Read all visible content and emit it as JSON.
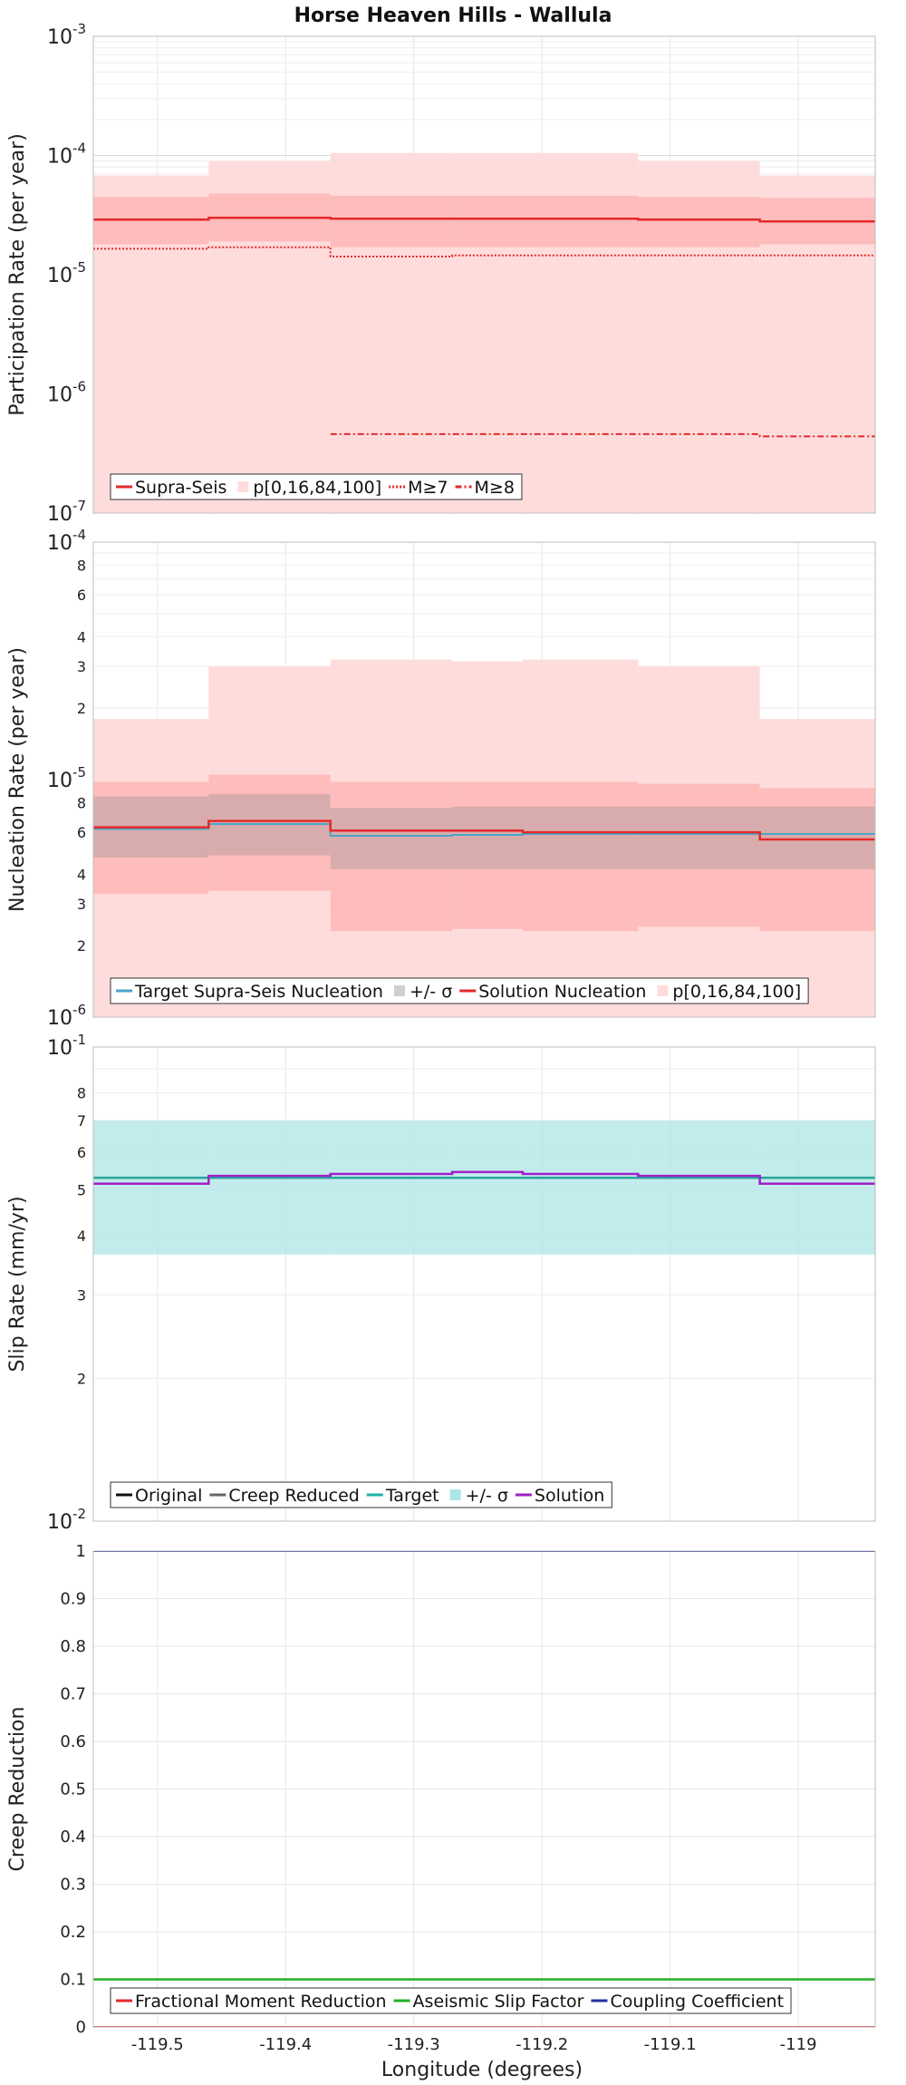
{
  "title": "Horse Heaven Hills - Wallula",
  "xlabel": "Longitude (degrees)",
  "x_ticks": [
    "-119.5",
    "-119.4",
    "-119.3",
    "-119.2",
    "-119.1",
    "-119"
  ],
  "x_range": [
    -119.55,
    -118.94
  ],
  "x_tick_values": [
    -119.5,
    -119.4,
    -119.3,
    -119.2,
    -119.1,
    -119.0
  ],
  "chart_data": [
    {
      "type": "line",
      "step": true,
      "ylabel": "Participation Rate (per year)",
      "yscale": "log",
      "ylim": [
        1e-07,
        0.001
      ],
      "grid": true,
      "legend_position": "bottom-left",
      "y_ticks": [
        {
          "value": 1e-07,
          "base": "10",
          "exp": "-7"
        },
        {
          "value": 1e-06,
          "base": "10",
          "exp": "-6"
        },
        {
          "value": 1e-05,
          "base": "10",
          "exp": "-5"
        },
        {
          "value": 0.0001,
          "base": "10",
          "exp": "-4"
        },
        {
          "value": 0.001,
          "base": "10",
          "exp": "-3"
        }
      ],
      "x_edges": [
        -119.55,
        -119.46,
        -119.365,
        -119.27,
        -119.215,
        -119.125,
        -119.03,
        -118.94
      ],
      "bands": [
        {
          "name": "p[0,16,84,100]",
          "color": "#ffdcdc",
          "opacity": 1,
          "low": [
            1e-07,
            1e-07,
            1e-07,
            1e-07,
            1e-07,
            1e-07,
            1e-07
          ],
          "high": [
            6.8e-05,
            9e-05,
            0.000105,
            0.000105,
            0.000105,
            9e-05,
            6.8e-05
          ]
        },
        {
          "name": "p16-84",
          "color": "#ffbcbc",
          "opacity": 1,
          "low": [
            1.8e-05,
            1.9e-05,
            1.7e-05,
            1.7e-05,
            1.7e-05,
            1.7e-05,
            1.8e-05
          ],
          "high": [
            4.5e-05,
            4.8e-05,
            4.6e-05,
            4.6e-05,
            4.6e-05,
            4.5e-05,
            4.4e-05
          ]
        }
      ],
      "series": [
        {
          "name": "Supra-Seis",
          "color": "#e32a2a",
          "dash": "",
          "width": 2.5,
          "values": [
            2.9e-05,
            3e-05,
            2.95e-05,
            2.95e-05,
            2.95e-05,
            2.9e-05,
            2.8e-05
          ]
        },
        {
          "name": "M≥7",
          "color": "#e32a2a",
          "dash": "2,2",
          "width": 2,
          "values": [
            1.65e-05,
            1.7e-05,
            1.42e-05,
            1.45e-05,
            1.45e-05,
            1.45e-05,
            1.45e-05
          ]
        },
        {
          "name": "M≥8",
          "color": "#e32a2a",
          "dash": "7,3,2,3",
          "width": 2,
          "values": [
            null,
            null,
            4.6e-07,
            4.6e-07,
            4.6e-07,
            4.6e-07,
            4.4e-07
          ]
        }
      ],
      "legend": [
        {
          "label": "Supra-Seis",
          "kind": "line",
          "color": "#e32a2a",
          "dash": ""
        },
        {
          "label": "p[0,16,84,100]",
          "kind": "box",
          "color": "#ffdcdc"
        },
        {
          "label": "M≥7",
          "kind": "line",
          "color": "#e32a2a",
          "dash": "2,2"
        },
        {
          "label": "M≥8",
          "kind": "line",
          "color": "#e32a2a",
          "dash": "7,3,2,3"
        }
      ]
    },
    {
      "type": "line",
      "step": true,
      "ylabel": "Nucleation Rate (per year)",
      "yscale": "log",
      "ylim": [
        1e-06,
        0.0001
      ],
      "grid": true,
      "legend_position": "bottom-left",
      "y_ticks": [
        {
          "value": 1e-06,
          "base": "10",
          "exp": "-6"
        },
        {
          "value": 2e-06,
          "label": "2"
        },
        {
          "value": 3e-06,
          "label": "3"
        },
        {
          "value": 4e-06,
          "label": "4"
        },
        {
          "value": 6e-06,
          "label": "6"
        },
        {
          "value": 8e-06,
          "label": "8"
        },
        {
          "value": 1e-05,
          "base": "10",
          "exp": "-5"
        },
        {
          "value": 2e-05,
          "label": "2"
        },
        {
          "value": 3e-05,
          "label": "3"
        },
        {
          "value": 4e-05,
          "label": "4"
        },
        {
          "value": 6e-05,
          "label": "6"
        },
        {
          "value": 8e-05,
          "label": "8"
        },
        {
          "value": 0.0001,
          "base": "10",
          "exp": "-4"
        }
      ],
      "x_edges": [
        -119.55,
        -119.46,
        -119.365,
        -119.27,
        -119.215,
        -119.125,
        -119.03,
        -118.94
      ],
      "bands": [
        {
          "name": "p[0,16,84,100]",
          "color": "#ffdcdc",
          "opacity": 1,
          "low": [
            1e-06,
            1e-06,
            1e-06,
            1e-06,
            1e-06,
            1e-06,
            1e-06
          ],
          "high": [
            1.8e-05,
            3e-05,
            3.2e-05,
            3.15e-05,
            3.2e-05,
            3e-05,
            1.8e-05
          ]
        },
        {
          "name": "p16-84",
          "color": "#ffbcbc",
          "opacity": 1,
          "low": [
            3.3e-06,
            3.4e-06,
            2.3e-06,
            2.35e-06,
            2.3e-06,
            2.4e-06,
            2.3e-06
          ],
          "high": [
            9.8e-06,
            1.05e-05,
            9.8e-06,
            9.8e-06,
            9.8e-06,
            9.6e-06,
            9.2e-06
          ]
        },
        {
          "name": "+/- σ",
          "color": "#909090",
          "opacity": 0.35,
          "low": [
            4.7e-06,
            4.8e-06,
            4.2e-06,
            4.2e-06,
            4.2e-06,
            4.2e-06,
            4.2e-06
          ],
          "high": [
            8.5e-06,
            8.7e-06,
            7.6e-06,
            7.7e-06,
            7.7e-06,
            7.7e-06,
            7.7e-06
          ]
        }
      ],
      "series": [
        {
          "name": "Target Supra-Seis Nucleation",
          "color": "#4aa6c9",
          "dash": "",
          "width": 2,
          "values": [
            6.2e-06,
            6.5e-06,
            5.8e-06,
            5.85e-06,
            5.9e-06,
            5.9e-06,
            5.9e-06
          ]
        },
        {
          "name": "Solution Nucleation",
          "color": "#e32a2a",
          "dash": "",
          "width": 2.5,
          "values": [
            6.3e-06,
            6.7e-06,
            6.1e-06,
            6.1e-06,
            6e-06,
            6e-06,
            5.6e-06
          ]
        }
      ],
      "legend": [
        {
          "label": "Target Supra-Seis Nucleation",
          "kind": "line",
          "color": "#4aa6c9",
          "dash": ""
        },
        {
          "label": "+/- σ",
          "kind": "box",
          "color": "#cfcfcf"
        },
        {
          "label": "Solution Nucleation",
          "kind": "line",
          "color": "#e32a2a",
          "dash": ""
        },
        {
          "label": "p[0,16,84,100]",
          "kind": "box",
          "color": "#ffdcdc"
        }
      ]
    },
    {
      "type": "line",
      "step": true,
      "ylabel": "Slip Rate (mm/yr)",
      "yscale": "log",
      "ylim": [
        0.01,
        0.1
      ],
      "grid": true,
      "legend_position": "bottom-left",
      "y_ticks": [
        {
          "value": 0.01,
          "base": "10",
          "exp": "-2"
        },
        {
          "value": 0.02,
          "label": "2"
        },
        {
          "value": 0.03,
          "label": "3"
        },
        {
          "value": 0.04,
          "label": "4"
        },
        {
          "value": 0.05,
          "label": "5"
        },
        {
          "value": 0.06,
          "label": "6"
        },
        {
          "value": 0.07,
          "label": "7"
        },
        {
          "value": 0.08,
          "label": "8"
        },
        {
          "value": 0.1,
          "base": "10",
          "exp": "-1"
        }
      ],
      "x_edges": [
        -119.55,
        -119.46,
        -119.365,
        -119.27,
        -119.215,
        -119.125,
        -119.03,
        -118.94
      ],
      "bands": [
        {
          "name": "+/- σ",
          "color": "#aee6e6",
          "opacity": 0.75,
          "low": [
            0.0365,
            0.0365,
            0.0365,
            0.0365,
            0.0365,
            0.0365,
            0.0365
          ],
          "high": [
            0.07,
            0.07,
            0.07,
            0.07,
            0.07,
            0.07,
            0.07
          ]
        }
      ],
      "series": [
        {
          "name": "Original",
          "color": "#111111",
          "dash": "",
          "width": 2,
          "values": [
            0.053,
            0.053,
            0.053,
            0.053,
            0.053,
            0.053,
            0.053
          ]
        },
        {
          "name": "Creep Reduced",
          "color": "#666666",
          "dash": "",
          "width": 2,
          "values": [
            0.053,
            0.053,
            0.053,
            0.053,
            0.053,
            0.053,
            0.053
          ]
        },
        {
          "name": "Target",
          "color": "#1ab0a8",
          "dash": "",
          "width": 2,
          "values": [
            0.053,
            0.053,
            0.053,
            0.053,
            0.053,
            0.053,
            0.053
          ]
        },
        {
          "name": "Solution",
          "color": "#a020c8",
          "dash": "",
          "width": 2.5,
          "values": [
            0.0515,
            0.0535,
            0.054,
            0.0545,
            0.054,
            0.0535,
            0.0515
          ]
        }
      ],
      "legend": [
        {
          "label": "Original",
          "kind": "line",
          "color": "#111111",
          "dash": ""
        },
        {
          "label": "Creep Reduced",
          "kind": "line",
          "color": "#666666",
          "dash": ""
        },
        {
          "label": "Target",
          "kind": "line",
          "color": "#1ab0a8",
          "dash": ""
        },
        {
          "label": "+/- σ",
          "kind": "box",
          "color": "#aee6e6"
        },
        {
          "label": "Solution",
          "kind": "line",
          "color": "#a020c8",
          "dash": ""
        }
      ]
    },
    {
      "type": "line",
      "step": false,
      "ylabel": "Creep Reduction",
      "yscale": "linear",
      "ylim": [
        0,
        1
      ],
      "grid": true,
      "legend_position": "bottom-left",
      "y_ticks": [
        {
          "value": 0,
          "label": "0"
        },
        {
          "value": 0.1,
          "label": "0.1"
        },
        {
          "value": 0.2,
          "label": "0.2"
        },
        {
          "value": 0.3,
          "label": "0.3"
        },
        {
          "value": 0.4,
          "label": "0.4"
        },
        {
          "value": 0.5,
          "label": "0.5"
        },
        {
          "value": 0.6,
          "label": "0.6"
        },
        {
          "value": 0.7,
          "label": "0.7"
        },
        {
          "value": 0.8,
          "label": "0.8"
        },
        {
          "value": 0.9,
          "label": "0.9"
        },
        {
          "value": 1,
          "label": "1"
        }
      ],
      "x_edges": [
        -119.55,
        -118.94
      ],
      "bands": [],
      "series": [
        {
          "name": "Fractional Moment Reduction",
          "color": "#e32a2a",
          "dash": "",
          "width": 2,
          "values": [
            0
          ]
        },
        {
          "name": "Aseismic Slip Factor",
          "color": "#22b022",
          "dash": "",
          "width": 2.5,
          "values": [
            0.1
          ]
        },
        {
          "name": "Coupling Coefficient",
          "color": "#2030a0",
          "dash": "",
          "width": 2,
          "values": [
            1
          ]
        }
      ],
      "legend": [
        {
          "label": "Fractional Moment Reduction",
          "kind": "line",
          "color": "#e32a2a",
          "dash": ""
        },
        {
          "label": "Aseismic Slip Factor",
          "kind": "line",
          "color": "#22b022",
          "dash": ""
        },
        {
          "label": "Coupling Coefficient",
          "kind": "line",
          "color": "#2030a0",
          "dash": ""
        }
      ]
    }
  ]
}
